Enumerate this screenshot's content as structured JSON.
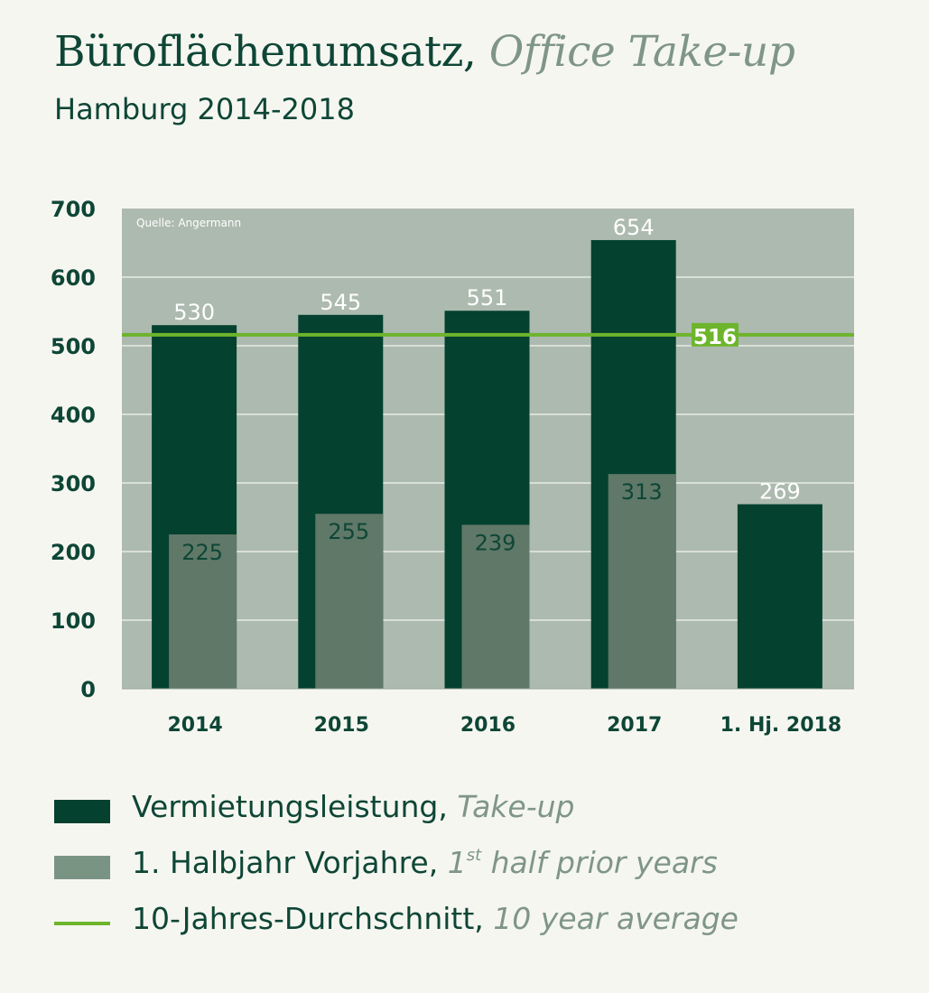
{
  "header": {
    "title_de": "Büroflächenumsatz,",
    "title_en": "Office Take-up",
    "subtitle": "Hamburg 2014-2018"
  },
  "chart_data": {
    "type": "bar",
    "source_note": "Quelle: Angermann",
    "categories": [
      "2014",
      "2015",
      "2016",
      "2017",
      "1. Hj. 2018"
    ],
    "series": [
      {
        "name": "Vermietungsleistung, Take-up",
        "values": [
          530,
          545,
          551,
          654,
          269
        ]
      },
      {
        "name": "1. Halbjahr Vorjahre, 1st half prior years",
        "values": [
          225,
          255,
          239,
          313,
          null
        ]
      }
    ],
    "reference_line": {
      "name": "10-Jahres-Durchschnitt, 10 year average",
      "value": 516,
      "label": "516"
    },
    "ylim": [
      0,
      700
    ],
    "yticks": [
      0,
      100,
      200,
      300,
      400,
      500,
      600,
      700
    ],
    "grid": true,
    "xlabel": "",
    "ylabel": ""
  },
  "colors": {
    "plot_bg": "#adbaaf",
    "grid": "#e6ebe6",
    "takeup": "#04412f",
    "first_half": "#5f7868",
    "avg_line": "#6db52c",
    "label_dark": "#0e4636",
    "label_light": "#ffffff"
  },
  "legend": {
    "takeup_de": "Vermietungsleistung,",
    "takeup_en": "Take-up",
    "half_de": "1. Halbjahr Vorjahre,",
    "half_en_num": "1",
    "half_en_sup": "st",
    "half_en_rest": "half prior years",
    "avg_de": "10-Jahres-Durchschnitt,",
    "avg_en": "10 year average"
  }
}
